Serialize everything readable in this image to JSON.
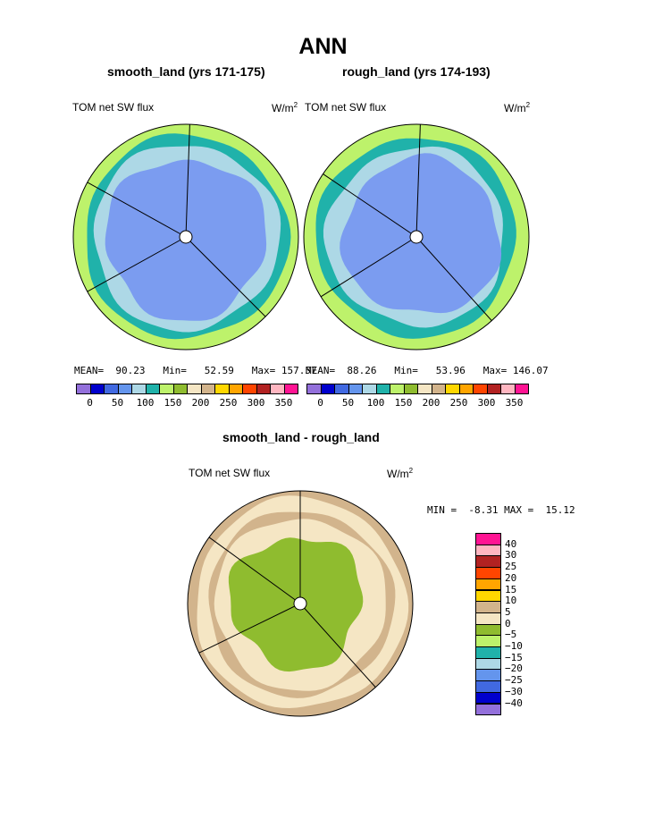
{
  "title": "ANN",
  "panels": [
    {
      "title": "smooth_land (yrs 171-175)",
      "variable": "TOM net SW flux",
      "units_base": "W/m",
      "units_exp": "2",
      "stats": {
        "mean_label": "MEAN=",
        "mean": "90.23",
        "min_label": "Min=",
        "min": "52.59",
        "max_label": "Max=",
        "max": "157.57"
      }
    },
    {
      "title": "rough_land (yrs 174-193)",
      "variable": "TOM net SW flux",
      "units_base": "W/m",
      "units_exp": "2",
      "stats": {
        "mean_label": "MEAN=",
        "mean": "88.26",
        "min_label": "Min=",
        "min": "53.96",
        "max_label": "Max=",
        "max": "146.07"
      }
    },
    {
      "title": "smooth_land - rough_land",
      "variable": "TOM net SW flux",
      "units_base": "W/m",
      "units_exp": "2",
      "stats": {
        "min_label": "MIN =",
        "min": "-8.31",
        "max_label": "MAX =",
        "max": "15.12"
      }
    }
  ],
  "colorbar_main": {
    "colors": [
      "#9370DB",
      "#0000CD",
      "#4169E1",
      "#6495ED",
      "#ADD8E6",
      "#20B2AA",
      "#BDF26B",
      "#8FBC2F",
      "#F5E6C4",
      "#D2B48C",
      "#FFD700",
      "#FFA500",
      "#FF4500",
      "#B22222",
      "#FFB6C1",
      "#FF1493"
    ],
    "ticks": [
      "0",
      "50",
      "100",
      "150",
      "200",
      "250",
      "300",
      "350"
    ]
  },
  "colorbar_diff": {
    "colors": [
      "#FF1493",
      "#FFB6C1",
      "#B22222",
      "#FF4500",
      "#FFA500",
      "#FFD700",
      "#D2B48C",
      "#F5E6C4",
      "#8FBC2F",
      "#BDF26B",
      "#20B2AA",
      "#ADD8E6",
      "#6495ED",
      "#4169E1",
      "#0000CD",
      "#9370DB"
    ],
    "ticks": [
      "40",
      "30",
      "25",
      "20",
      "15",
      "10",
      "5",
      "0",
      "−5",
      "−10",
      "−15",
      "−20",
      "−25",
      "−30",
      "−40"
    ]
  },
  "colors": {
    "ring_outer_green": "#BDF26B",
    "ring_teal": "#20B2AA",
    "ring_lightblue": "#ADD8E6",
    "center_blue": "#7B9CF0",
    "dark_green": "#8FBC2F",
    "beige": "#F5E6C4",
    "tan": "#D2B48C",
    "yellow": "#FFD700",
    "orange": "#FFA500"
  },
  "chart_data": [
    {
      "type": "heatmap",
      "title": "smooth_land (yrs 171-175)",
      "variable": "TOM net SW flux",
      "units": "W/m2",
      "mean": 90.23,
      "min": 52.59,
      "max": 157.57,
      "levels": [
        0,
        50,
        100,
        150,
        200,
        250,
        300,
        350
      ]
    },
    {
      "type": "heatmap",
      "title": "rough_land (yrs 174-193)",
      "variable": "TOM net SW flux",
      "units": "W/m2",
      "mean": 88.26,
      "min": 53.96,
      "max": 146.07,
      "levels": [
        0,
        50,
        100,
        150,
        200,
        250,
        300,
        350
      ]
    },
    {
      "type": "heatmap",
      "title": "smooth_land - rough_land",
      "variable": "TOM net SW flux",
      "units": "W/m2",
      "min": -8.31,
      "max": 15.12,
      "levels": [
        40,
        30,
        25,
        20,
        15,
        10,
        5,
        0,
        -5,
        -10,
        -15,
        -20,
        -25,
        -30,
        -40
      ]
    }
  ]
}
